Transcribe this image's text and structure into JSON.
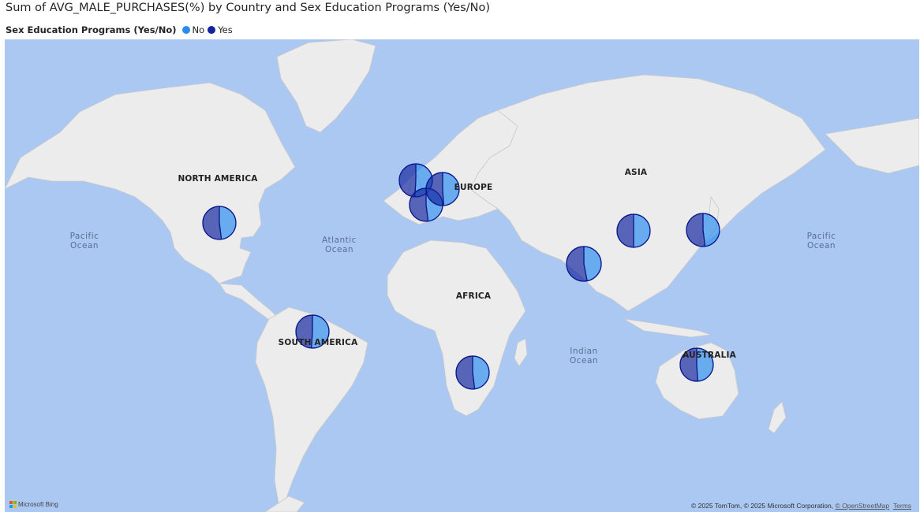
{
  "title": "Sum of AVG_MALE_PURCHASES(%) by Country and Sex Education Programs (Yes/No)",
  "legend": {
    "title": "Sex Education Programs (Yes/No)",
    "items": [
      {
        "label": "No",
        "color": "#2b8cf0"
      },
      {
        "label": "Yes",
        "color": "#12239e"
      }
    ]
  },
  "continent_labels": [
    "NORTH AMERICA",
    "EUROPE",
    "ASIA",
    "AFRICA",
    "SOUTH AMERICA",
    "AUSTRALIA"
  ],
  "ocean_labels": [
    {
      "line1": "Pacific",
      "line2": "Ocean"
    },
    {
      "line1": "Atlantic",
      "line2": "Ocean"
    },
    {
      "line1": "Indian",
      "line2": "Ocean"
    },
    {
      "line1": "Pacific",
      "line2": "Ocean"
    }
  ],
  "chart_data": {
    "type": "pie",
    "measure": "Sum of AVG_MALE_PURCHASES(%)",
    "category": "Sex Education Programs (Yes/No)",
    "note_colors": {
      "No": "#2b8cf0",
      "Yes": "#12239e"
    },
    "points": [
      {
        "location": "North America",
        "values": {
          "No": 48,
          "Yes": 52
        }
      },
      {
        "location": "Western Europe (north)",
        "values": {
          "No": 51,
          "Yes": 49
        }
      },
      {
        "location": "Western Europe (south)",
        "values": {
          "No": 48,
          "Yes": 52
        }
      },
      {
        "location": "Central Europe",
        "values": {
          "No": 49,
          "Yes": 51
        }
      },
      {
        "location": "India",
        "values": {
          "No": 47,
          "Yes": 53
        }
      },
      {
        "location": "China",
        "values": {
          "No": 50,
          "Yes": 50
        }
      },
      {
        "location": "Japan",
        "values": {
          "No": 48,
          "Yes": 52
        }
      },
      {
        "location": "South America",
        "values": {
          "No": 51,
          "Yes": 49
        }
      },
      {
        "location": "Southern Africa",
        "values": {
          "No": 48,
          "Yes": 52
        }
      },
      {
        "location": "Australia",
        "values": {
          "No": 49,
          "Yes": 51
        }
      }
    ]
  },
  "attribution": {
    "text": "© 2025 TomTom, © 2025 Microsoft Corporation, ",
    "osm_link": "© OpenStreetMap",
    "terms_link": "Terms"
  },
  "brand": "Microsoft Bing"
}
